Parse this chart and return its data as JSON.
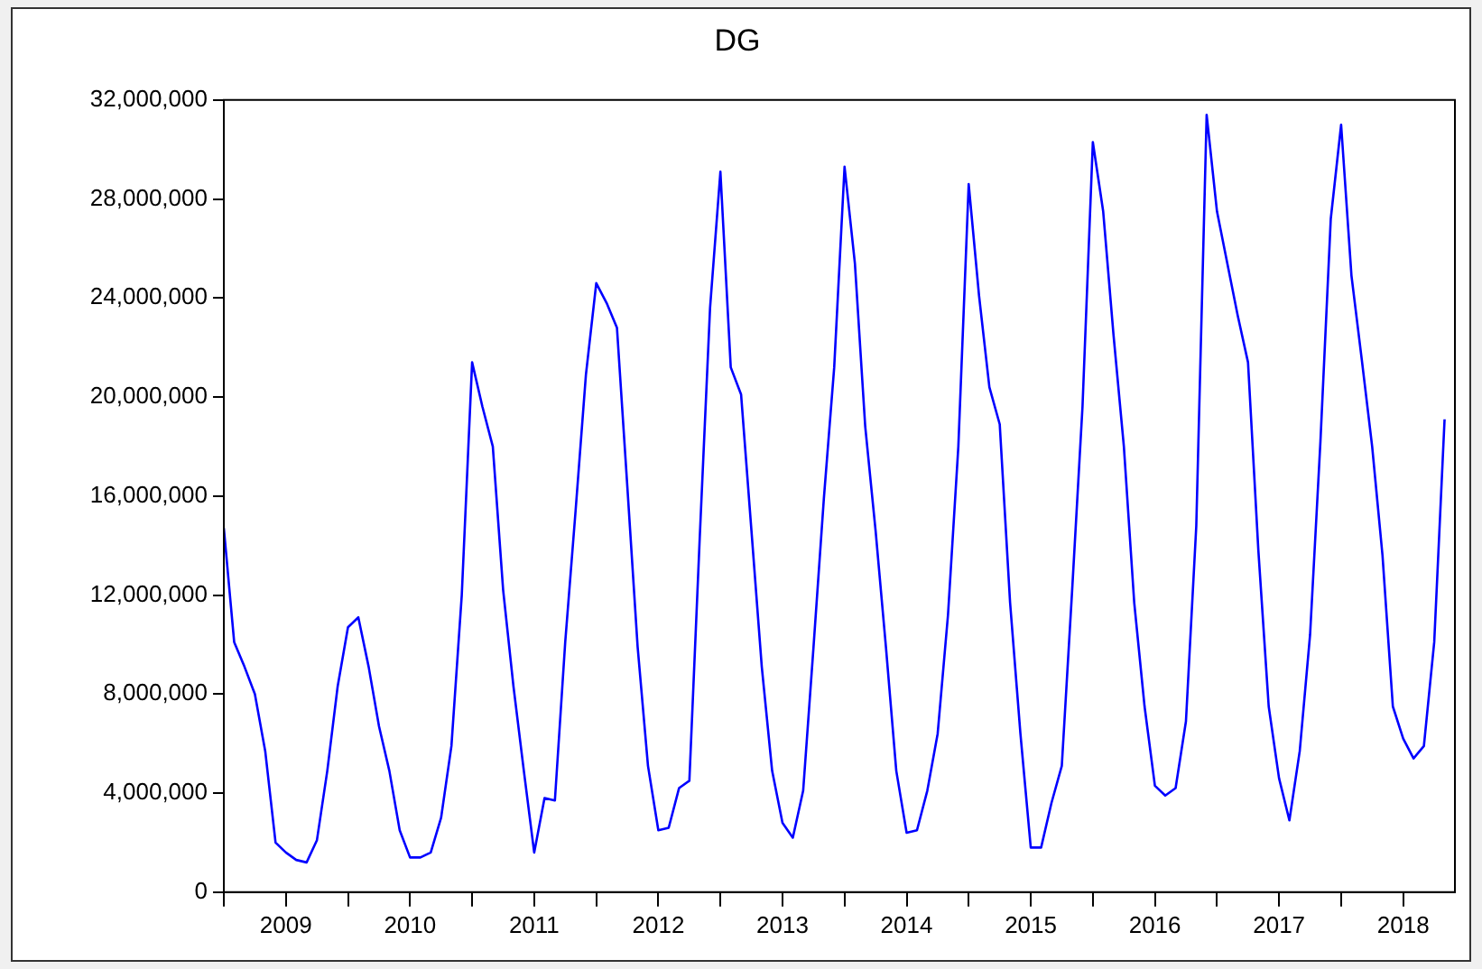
{
  "chart_data": {
    "type": "line",
    "title": "DG",
    "x": [
      "2009-01",
      "2009-02",
      "2009-03",
      "2009-04",
      "2009-05",
      "2009-06",
      "2009-07",
      "2009-08",
      "2009-09",
      "2009-10",
      "2009-11",
      "2009-12",
      "2010-01",
      "2010-02",
      "2010-03",
      "2010-04",
      "2010-05",
      "2010-06",
      "2010-07",
      "2010-08",
      "2010-09",
      "2010-10",
      "2010-11",
      "2010-12",
      "2011-01",
      "2011-02",
      "2011-03",
      "2011-04",
      "2011-05",
      "2011-06",
      "2011-07",
      "2011-08",
      "2011-09",
      "2011-10",
      "2011-11",
      "2011-12",
      "2012-01",
      "2012-02",
      "2012-03",
      "2012-04",
      "2012-05",
      "2012-06",
      "2012-07",
      "2012-08",
      "2012-09",
      "2012-10",
      "2012-11",
      "2012-12",
      "2013-01",
      "2013-02",
      "2013-03",
      "2013-04",
      "2013-05",
      "2013-06",
      "2013-07",
      "2013-08",
      "2013-09",
      "2013-10",
      "2013-11",
      "2013-12",
      "2014-01",
      "2014-02",
      "2014-03",
      "2014-04",
      "2014-05",
      "2014-06",
      "2014-07",
      "2014-08",
      "2014-09",
      "2014-10",
      "2014-11",
      "2014-12",
      "2015-01",
      "2015-02",
      "2015-03",
      "2015-04",
      "2015-05",
      "2015-06",
      "2015-07",
      "2015-08",
      "2015-09",
      "2015-10",
      "2015-11",
      "2015-12",
      "2016-01",
      "2016-02",
      "2016-03",
      "2016-04",
      "2016-05",
      "2016-06",
      "2016-07",
      "2016-08",
      "2016-09",
      "2016-10",
      "2016-11",
      "2016-12",
      "2017-01",
      "2017-02",
      "2017-03",
      "2017-04",
      "2017-05",
      "2017-06",
      "2017-07",
      "2017-08",
      "2017-09",
      "2017-10",
      "2017-11",
      "2017-12",
      "2018-01",
      "2018-02",
      "2018-03",
      "2018-04",
      "2018-05",
      "2018-06",
      "2018-07",
      "2018-08",
      "2018-09",
      "2018-10",
      "2018-11"
    ],
    "series": [
      {
        "color": "#0000ff",
        "values": [
          14700000,
          10100000,
          9100000,
          8000000,
          5700000,
          2000000,
          1600000,
          1300000,
          1200000,
          2100000,
          4900000,
          8300000,
          10700000,
          11100000,
          9100000,
          6700000,
          4900000,
          2500000,
          1400000,
          1400000,
          1600000,
          3000000,
          5900000,
          12000000,
          21400000,
          19600000,
          18000000,
          12200000,
          8300000,
          4900000,
          1600000,
          3800000,
          3700000,
          10100000,
          15400000,
          20900000,
          24600000,
          23800000,
          22800000,
          16400000,
          9900000,
          5100000,
          2500000,
          2600000,
          4200000,
          4500000,
          14300000,
          23600000,
          29100000,
          21200000,
          20100000,
          14600000,
          9100000,
          4900000,
          2800000,
          2200000,
          4100000,
          9900000,
          15900000,
          21200000,
          29300000,
          25400000,
          18800000,
          14600000,
          9900000,
          4900000,
          2400000,
          2500000,
          4100000,
          6400000,
          11200000,
          18000000,
          28600000,
          24100000,
          20400000,
          18900000,
          11700000,
          6400000,
          1800000,
          1800000,
          3600000,
          5100000,
          12200000,
          19600000,
          30300000,
          27500000,
          22500000,
          18000000,
          11700000,
          7500000,
          4300000,
          3900000,
          4200000,
          6900000,
          14800000,
          31400000,
          27500000,
          25400000,
          23300000,
          21400000,
          13800000,
          7500000,
          4600000,
          2900000,
          5700000,
          10400000,
          18200000,
          27200000,
          31000000,
          24900000,
          21500000,
          18000000,
          13600000,
          7500000,
          6200000,
          5400000,
          5900000,
          10100000,
          19100000
        ]
      }
    ],
    "xlim": [
      "2009-01",
      "2018-12"
    ],
    "xticks": [
      {
        "value": "2009-01",
        "label": null
      },
      {
        "value": "2009-07",
        "label": "2009"
      },
      {
        "value": "2010-01",
        "label": null
      },
      {
        "value": "2010-07",
        "label": "2010"
      },
      {
        "value": "2011-01",
        "label": null
      },
      {
        "value": "2011-07",
        "label": "2011"
      },
      {
        "value": "2012-01",
        "label": null
      },
      {
        "value": "2012-07",
        "label": "2012"
      },
      {
        "value": "2013-01",
        "label": null
      },
      {
        "value": "2013-07",
        "label": "2013"
      },
      {
        "value": "2014-01",
        "label": null
      },
      {
        "value": "2014-07",
        "label": "2014"
      },
      {
        "value": "2015-01",
        "label": null
      },
      {
        "value": "2015-07",
        "label": "2015"
      },
      {
        "value": "2016-01",
        "label": null
      },
      {
        "value": "2016-07",
        "label": "2016"
      },
      {
        "value": "2017-01",
        "label": null
      },
      {
        "value": "2017-07",
        "label": "2017"
      },
      {
        "value": "2018-01",
        "label": null
      },
      {
        "value": "2018-07",
        "label": "2018"
      }
    ],
    "ylim": [
      0,
      32000000
    ],
    "yticks": [
      {
        "value": 0,
        "label": "0"
      },
      {
        "value": 4000000,
        "label": "4,000,000"
      },
      {
        "value": 8000000,
        "label": "8,000,000"
      },
      {
        "value": 12000000,
        "label": "12,000,000"
      },
      {
        "value": 16000000,
        "label": "16,000,000"
      },
      {
        "value": 20000000,
        "label": "20,000,000"
      },
      {
        "value": 24000000,
        "label": "24,000,000"
      },
      {
        "value": 28000000,
        "label": "28,000,000"
      },
      {
        "value": 32000000,
        "label": "32,000,000"
      }
    ],
    "grid": false,
    "legend": false,
    "marker": "none",
    "line_style": "solid"
  }
}
